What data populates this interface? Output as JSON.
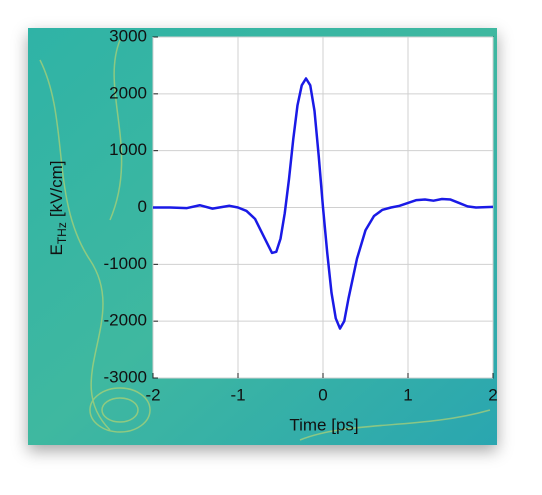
{
  "chart_data": {
    "type": "line",
    "xlabel": "Time [ps]",
    "ylabel": {
      "main": "E",
      "sub": "THz",
      "unit": "[kV/cm]"
    },
    "x": [
      -2,
      -1.8,
      -1.6,
      -1.45,
      -1.3,
      -1.1,
      -1.0,
      -0.9,
      -0.8,
      -0.7,
      -0.6,
      -0.55,
      -0.5,
      -0.45,
      -0.4,
      -0.35,
      -0.3,
      -0.25,
      -0.2,
      -0.15,
      -0.1,
      -0.05,
      0,
      0.05,
      0.1,
      0.15,
      0.2,
      0.25,
      0.3,
      0.4,
      0.5,
      0.6,
      0.7,
      0.8,
      0.9,
      1.0,
      1.1,
      1.2,
      1.3,
      1.4,
      1.5,
      1.6,
      1.7,
      1.8,
      2.0
    ],
    "series": [
      {
        "color": "#1a1ae6",
        "values": [
          0,
          0,
          -10,
          40,
          -20,
          30,
          0,
          -60,
          -200,
          -500,
          -800,
          -780,
          -550,
          -100,
          500,
          1200,
          1800,
          2150,
          2270,
          2150,
          1700,
          900,
          0,
          -800,
          -1500,
          -1950,
          -2130,
          -2000,
          -1600,
          -900,
          -400,
          -150,
          -40,
          0,
          30,
          80,
          130,
          140,
          120,
          150,
          140,
          80,
          20,
          0,
          10
        ]
      }
    ],
    "xlim": [
      -2,
      2
    ],
    "xticks": [
      -2,
      -1,
      0,
      1,
      2
    ],
    "ylim": [
      -3000,
      3000
    ],
    "yticks": [
      -3000,
      -2000,
      -1000,
      0,
      1000,
      2000,
      3000
    ],
    "grid": true
  }
}
